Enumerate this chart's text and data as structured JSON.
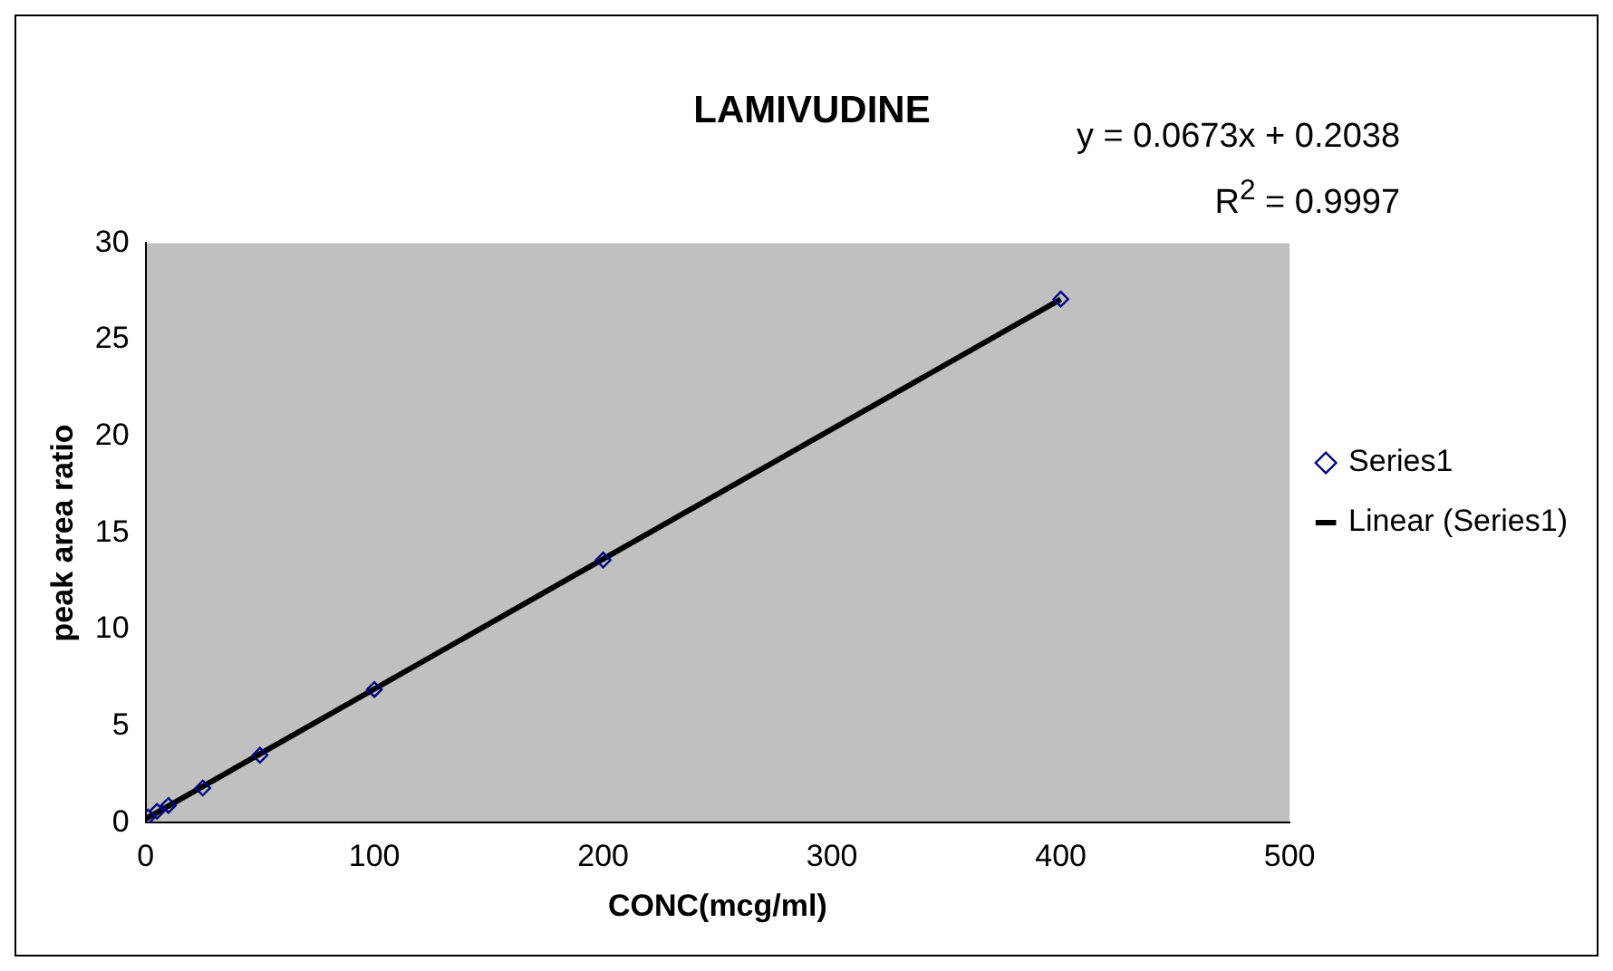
{
  "chart_data": {
    "type": "scatter",
    "title": "LAMIVUDINE",
    "xlabel": "CONC(mcg/ml)",
    "ylabel": "peak area ratio",
    "annotations": [
      "y = 0.0673x + 0.2038",
      "R$^{2}$ = 0.9997"
    ],
    "series": [
      {
        "name": "Series1",
        "color": "#000080",
        "marker": "diamond",
        "x": [
          1,
          5,
          10,
          25,
          50,
          100,
          200,
          400
        ],
        "values": [
          0.3,
          0.6,
          0.9,
          1.8,
          3.5,
          6.9,
          13.6,
          27.1
        ]
      },
      {
        "name": "Linear (Series1)",
        "type": "line",
        "color": "#000000",
        "line_style": "solid",
        "marker": "none",
        "x": [
          0,
          400
        ],
        "values": [
          0.2,
          27.1
        ]
      }
    ],
    "xlim": [
      0,
      500
    ],
    "xticks": [
      0,
      100,
      200,
      300,
      400,
      500
    ],
    "ylim": [
      0,
      30
    ],
    "yticks": [
      0,
      5,
      10,
      15,
      20,
      25,
      30
    ],
    "grid": false,
    "legend": "right"
  }
}
